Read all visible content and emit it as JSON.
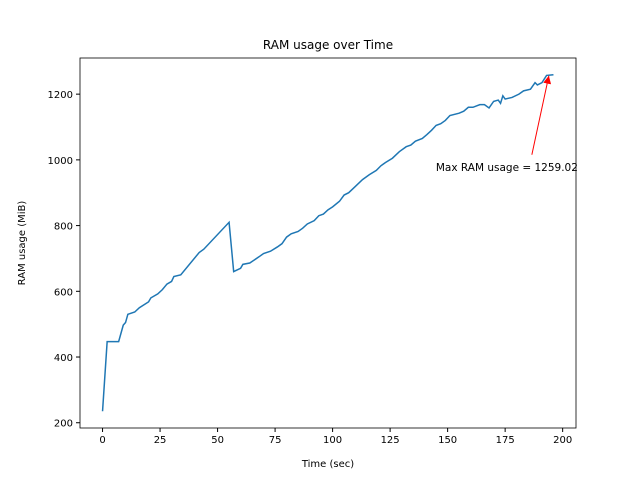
{
  "chart_data": {
    "type": "line",
    "title": "RAM usage over Time",
    "x_label": "Time (sec)",
    "y_label": "RAM usage (MiB)",
    "x": [
      0,
      2,
      7,
      9,
      10,
      11,
      14,
      16,
      20,
      21,
      24,
      26,
      28,
      30,
      31,
      34,
      42,
      44,
      55,
      57,
      60,
      61,
      64,
      68,
      70,
      73,
      76,
      78,
      80,
      82,
      85,
      87,
      89,
      92,
      94,
      96,
      98,
      100,
      103,
      105,
      107,
      110,
      113,
      116,
      119,
      121,
      123,
      126,
      129,
      132,
      134,
      136,
      139,
      141,
      143,
      145,
      147,
      149,
      151,
      155,
      157,
      159,
      161,
      164,
      166,
      168,
      170,
      172,
      173,
      174,
      175,
      178,
      181,
      183,
      186,
      188,
      189,
      191,
      193,
      196
    ],
    "series": [
      {
        "name": "RAM usage",
        "color": "#1f77b4",
        "values": [
          235,
          447,
          447,
          497,
          505,
          530,
          537,
          550,
          568,
          580,
          592,
          605,
          622,
          630,
          645,
          650,
          718,
          728,
          810,
          660,
          670,
          682,
          686,
          705,
          715,
          722,
          735,
          745,
          765,
          775,
          782,
          792,
          805,
          815,
          830,
          835,
          848,
          857,
          874,
          893,
          900,
          920,
          940,
          955,
          968,
          982,
          992,
          1005,
          1025,
          1040,
          1045,
          1057,
          1065,
          1077,
          1090,
          1105,
          1110,
          1120,
          1135,
          1142,
          1148,
          1160,
          1160,
          1168,
          1168,
          1158,
          1178,
          1182,
          1172,
          1195,
          1185,
          1190,
          1200,
          1210,
          1215,
          1235,
          1228,
          1235,
          1257,
          1259.02
        ]
      }
    ],
    "annotation": {
      "text": "Max RAM usage = 1259.02",
      "xy": [
        194,
        1259.02
      ],
      "color": "red"
    },
    "xlim": [
      -9.8,
      205.8
    ],
    "ylim": [
      184,
      1310
    ],
    "xticks": [
      0,
      25,
      50,
      75,
      100,
      125,
      150,
      175,
      200
    ],
    "yticks": [
      200,
      400,
      600,
      800,
      1000,
      1200
    ]
  }
}
